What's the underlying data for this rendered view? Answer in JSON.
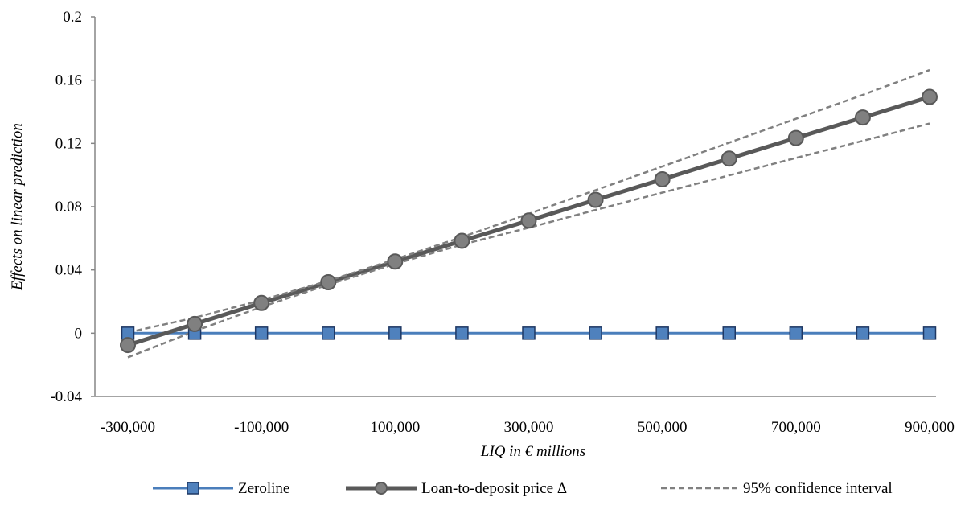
{
  "chart_data": {
    "type": "line",
    "xlabel": "LIQ in € millions",
    "ylabel": "Effects on linear prediction",
    "xlim": [
      -300000,
      900000
    ],
    "ylim": [
      -0.04,
      0.2
    ],
    "x_ticks": [
      "-300,000",
      "-100,000",
      "100,000",
      "300,000",
      "500,000",
      "700,000",
      "900,000"
    ],
    "y_ticks": [
      "-0.04",
      "0",
      "0.04",
      "0.08",
      "0.12",
      "0.16",
      "0.2"
    ],
    "x": [
      -300000,
      -200000,
      -100000,
      0,
      100000,
      200000,
      300000,
      400000,
      500000,
      600000,
      700000,
      800000,
      900000
    ],
    "grid": false,
    "legend_position": "bottom",
    "series": [
      {
        "name": "Zeroline",
        "style": "solid",
        "marker": "square",
        "color": "#4a7ebb",
        "marker_fill": "#4f81bd",
        "marker_stroke": "#1f3864",
        "values": [
          0,
          0,
          0,
          0,
          0,
          0,
          0,
          0,
          0,
          0,
          0,
          0,
          0
        ]
      },
      {
        "name": "Loan-to-deposit price Δ",
        "style": "solid",
        "marker": "circle",
        "color": "#595959",
        "marker_fill": "#808080",
        "marker_stroke": "#595959",
        "values": [
          -0.0075,
          0.0058,
          0.0191,
          0.0322,
          0.0453,
          0.0584,
          0.0712,
          0.0843,
          0.0973,
          0.1104,
          0.1234,
          0.1364,
          0.1494
        ]
      },
      {
        "name": "95% confidence interval",
        "style": "dashed",
        "marker": "none",
        "color": "#808080",
        "values": [
          0.0005,
          0.0098,
          0.0209,
          0.0331,
          0.0467,
          0.0608,
          0.0755,
          0.0904,
          0.1054,
          0.1205,
          0.1356,
          0.1507,
          0.1664
        ]
      },
      {
        "name": "95% confidence interval lower",
        "legend": false,
        "style": "dashed",
        "marker": "none",
        "color": "#808080",
        "values": [
          -0.0153,
          0.0013,
          0.0166,
          0.0307,
          0.0438,
          0.056,
          0.0667,
          0.0779,
          0.0889,
          0.0998,
          0.1108,
          0.1216,
          0.1326
        ]
      }
    ]
  }
}
